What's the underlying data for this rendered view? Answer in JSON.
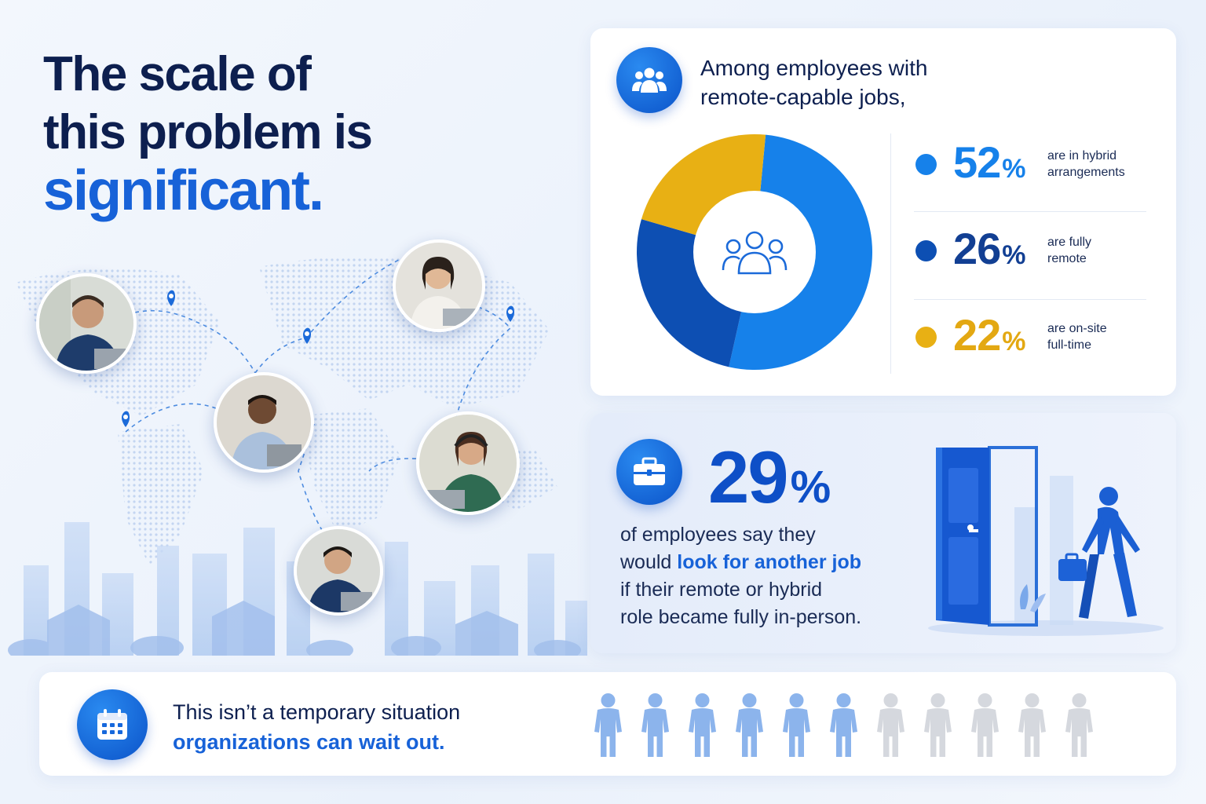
{
  "headline": {
    "line1": "The scale of",
    "line2": "this problem is",
    "line3": "significant."
  },
  "top_card": {
    "heading_line1": "Among employees with",
    "heading_line2": "remote-capable jobs,",
    "icon": "people-group-icon",
    "center_icon": "people-group-outline-icon"
  },
  "chart_data": {
    "type": "pie",
    "subtype": "donut",
    "series": [
      {
        "name": "are in hybrid arrangements",
        "value": 52,
        "color": "#1681ea"
      },
      {
        "name": "are fully remote",
        "value": 26,
        "color": "#0d4fb3"
      },
      {
        "name": "are on-site full-time",
        "value": 22,
        "color": "#e8b014"
      }
    ],
    "legend": "right"
  },
  "legend": [
    {
      "value": "52",
      "sign": "%",
      "line1": "are in hybrid",
      "line2": "arrangements",
      "color": "#1681ea",
      "text_color": "#1681ea"
    },
    {
      "value": "26",
      "sign": "%",
      "line1": "are fully",
      "line2": "remote",
      "color": "#0d4fb3",
      "text_color": "#123f93"
    },
    {
      "value": "22",
      "sign": "%",
      "line1": "are on-site",
      "line2": "full-time",
      "color": "#e8b014",
      "text_color": "#e3a812"
    }
  ],
  "mid_card": {
    "icon": "briefcase-icon",
    "stat_value": "29",
    "stat_sign": "%",
    "line1": "of employees say they",
    "line2_pre": "would ",
    "line2_hl": "look for another job",
    "line3": "if their remote or hybrid",
    "line4": "role became fully in-person.",
    "illustration": "person-leaving-door-illustration"
  },
  "bottom_card": {
    "icon": "calendar-icon",
    "line1": "This isn’t a temporary situation",
    "line2": "organizations can wait out.",
    "people_total": 11,
    "people_highlighted": 6,
    "highlight_color": "#8cb4ec",
    "muted_color": "#d5d8de"
  }
}
